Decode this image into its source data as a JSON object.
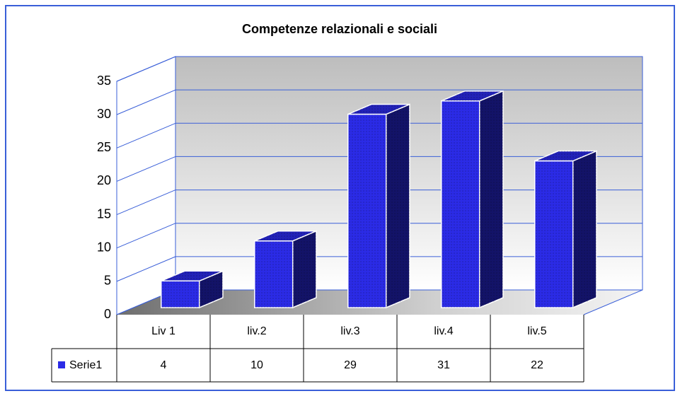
{
  "chart_data": {
    "type": "bar3d",
    "title": "Competenze relazionali e sociali",
    "categories": [
      "Liv 1",
      "liv.2",
      "liv.3",
      "liv.4",
      "liv.5"
    ],
    "series": [
      {
        "name": "Serie1",
        "color": "#2b2be6",
        "values": [
          4,
          10,
          29,
          31,
          22
        ]
      }
    ],
    "ylim": [
      0,
      35
    ],
    "yticks": [
      0,
      5,
      10,
      15,
      20,
      25,
      30,
      35
    ],
    "grid": true,
    "data_table": true
  }
}
